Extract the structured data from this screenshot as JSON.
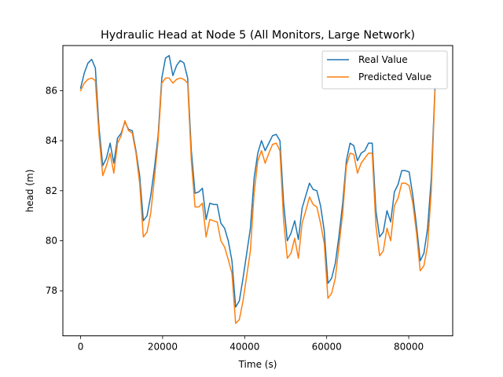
{
  "chart_data": {
    "type": "line",
    "title": "Hydraulic Head at Node 5 (All Monitors, Large Network)",
    "xlabel": "Time (s)",
    "ylabel": "head (m)",
    "xlim": [
      -4320,
      90720
    ],
    "ylim": [
      76.2,
      87.8
    ],
    "xticks": [
      0,
      20000,
      40000,
      60000,
      80000
    ],
    "xtick_labels": [
      "0",
      "20000",
      "40000",
      "60000",
      "80000"
    ],
    "yticks": [
      78,
      80,
      82,
      84,
      86
    ],
    "ytick_labels": [
      "78",
      "80",
      "82",
      "84",
      "86"
    ],
    "grid": false,
    "legend_position": "upper right",
    "x": [
      0,
      900,
      1800,
      2700,
      3600,
      4500,
      5400,
      6300,
      7200,
      8100,
      9000,
      9900,
      10800,
      11700,
      12600,
      13500,
      14400,
      15300,
      16200,
      17100,
      18000,
      18900,
      19800,
      20700,
      21600,
      22500,
      23400,
      24300,
      25200,
      26100,
      27000,
      27900,
      28800,
      29700,
      30600,
      31500,
      32400,
      33300,
      34200,
      35100,
      36000,
      36900,
      37800,
      38700,
      39600,
      40500,
      41400,
      42300,
      43200,
      44100,
      45000,
      45900,
      46800,
      47700,
      48600,
      49500,
      50400,
      51300,
      52200,
      53100,
      54000,
      54900,
      55800,
      56700,
      57600,
      58500,
      59400,
      60300,
      61200,
      62100,
      63000,
      63900,
      64800,
      65700,
      66600,
      67500,
      68400,
      69300,
      70200,
      71100,
      72000,
      72900,
      73800,
      74700,
      75600,
      76500,
      77400,
      78300,
      79200,
      80100,
      81000,
      81900,
      82800,
      83700,
      84600,
      85500,
      86400
    ],
    "series": [
      {
        "name": "Real Value",
        "color": "#1f77b4",
        "values": [
          86.1,
          86.7,
          87.1,
          87.25,
          86.9,
          84.5,
          83.0,
          83.3,
          83.9,
          83.1,
          84.1,
          84.3,
          84.75,
          84.45,
          84.4,
          83.6,
          82.6,
          80.8,
          81.0,
          81.8,
          82.9,
          84.2,
          86.5,
          87.3,
          87.4,
          86.6,
          87.0,
          87.2,
          87.1,
          86.5,
          83.6,
          81.9,
          81.95,
          82.1,
          80.85,
          81.5,
          81.45,
          81.45,
          80.7,
          80.5,
          80.0,
          79.2,
          77.35,
          77.6,
          78.5,
          79.5,
          80.5,
          82.5,
          83.5,
          84.0,
          83.6,
          83.9,
          84.2,
          84.25,
          84.0,
          81.5,
          80.0,
          80.3,
          80.8,
          80.05,
          81.3,
          81.8,
          82.3,
          82.05,
          82.0,
          81.4,
          80.4,
          78.3,
          78.5,
          79.1,
          80.2,
          81.5,
          83.2,
          83.9,
          83.8,
          83.2,
          83.5,
          83.6,
          83.9,
          83.9,
          81.2,
          80.15,
          80.35,
          81.2,
          80.75,
          81.95,
          82.25,
          82.8,
          82.8,
          82.75,
          81.8,
          80.6,
          79.2,
          79.5,
          80.5,
          82.5,
          86.1
        ]
      },
      {
        "name": "Predicted Value",
        "color": "#ff7f0e",
        "values": [
          86.0,
          86.3,
          86.45,
          86.5,
          86.4,
          84.2,
          82.6,
          83.0,
          83.5,
          82.7,
          83.9,
          84.2,
          84.8,
          84.4,
          84.3,
          83.5,
          82.3,
          80.15,
          80.35,
          81.1,
          82.5,
          84.0,
          86.3,
          86.5,
          86.5,
          86.3,
          86.45,
          86.5,
          86.45,
          86.3,
          83.2,
          81.35,
          81.35,
          81.5,
          80.15,
          80.85,
          80.8,
          80.75,
          80.0,
          79.75,
          79.25,
          78.7,
          76.7,
          76.85,
          77.6,
          78.6,
          79.6,
          81.9,
          83.2,
          83.6,
          83.1,
          83.5,
          83.85,
          83.9,
          83.6,
          80.8,
          79.3,
          79.5,
          80.1,
          79.3,
          80.7,
          81.2,
          81.75,
          81.45,
          81.35,
          80.7,
          79.9,
          77.7,
          77.9,
          78.5,
          79.8,
          81.1,
          83.0,
          83.5,
          83.45,
          82.7,
          83.1,
          83.3,
          83.5,
          83.5,
          80.6,
          79.4,
          79.6,
          80.5,
          80.0,
          81.4,
          81.7,
          82.3,
          82.3,
          82.2,
          81.5,
          80.3,
          78.8,
          79.0,
          79.8,
          82.0,
          86.0
        ]
      }
    ]
  }
}
